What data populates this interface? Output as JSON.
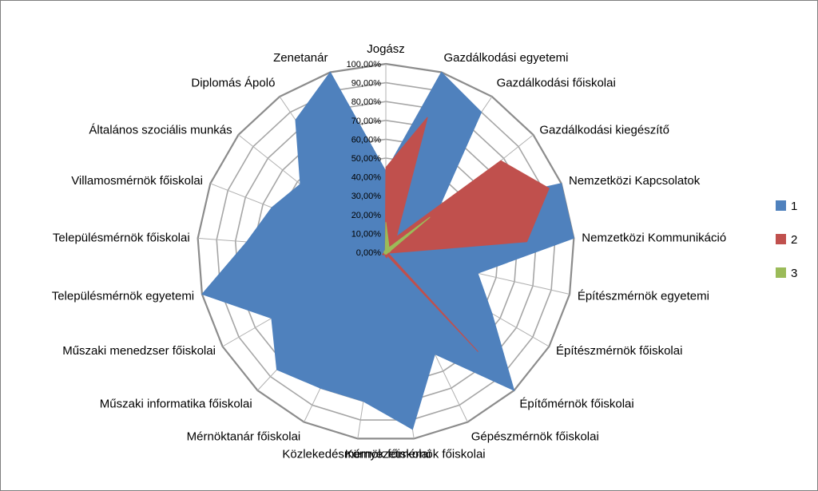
{
  "chart_data": {
    "type": "radar",
    "title": "",
    "categories": [
      "Jogász",
      "Gazdálkodási egyetemi",
      "Gazdálkodási főiskolai",
      "Gazdálkodási kiegészítő",
      "Nemzetközi Kapcsolatok",
      "Nemzetközi Kommunikáció",
      "Építészmérnök egyetemi",
      "Építészmérnök főiskolai",
      "Építőmérnök főiskolai",
      "Gépészmérnök főiskolai",
      "Környezetmérnök főiskolai",
      "Közlekedésmérnök főiskolai",
      "Mérnöktanár főiskolai",
      "Műszaki informatika főiskolai",
      "Műszaki menedzser főiskolai",
      "Településmérnök egyetemi",
      "Településmérnök főiskolai",
      "Villamosmérnök főiskolai",
      "Általános szociális munkás",
      "Diplomás Ápoló",
      "Zenetanár"
    ],
    "ticks": [
      "0,00%",
      "10,00%",
      "20,00%",
      "30,00%",
      "40,00%",
      "50,00%",
      "60,00%",
      "70,00%",
      "80,00%",
      "90,00%",
      "100,00%"
    ],
    "rmax": 100,
    "grid": true,
    "legend_position": "right",
    "series": [
      {
        "name": "1",
        "color": "#4f81bd",
        "values": [
          43,
          100,
          90,
          35,
          100,
          100,
          50,
          65,
          100,
          60,
          95,
          80,
          80,
          85,
          70,
          100,
          74,
          65,
          58,
          85,
          100
        ]
      },
      {
        "name": "2",
        "color": "#c0504d",
        "values": [
          45,
          75,
          10,
          78,
          93,
          75,
          2,
          2,
          72,
          2,
          3,
          2,
          1,
          2,
          2,
          1,
          1,
          1,
          1,
          1,
          1
        ]
      },
      {
        "name": "3",
        "color": "#9bbb59",
        "values": [
          16,
          5,
          3,
          30,
          3,
          2,
          1,
          1,
          1,
          1,
          1,
          1,
          1,
          1,
          1,
          1,
          1,
          1,
          1,
          1,
          1
        ]
      }
    ]
  }
}
